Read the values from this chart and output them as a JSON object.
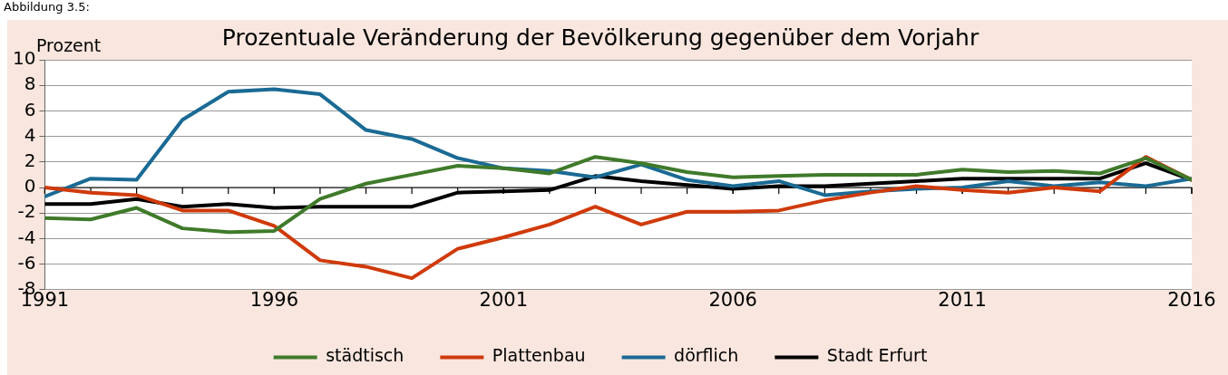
{
  "chart_data": {
    "type": "line",
    "title": "Prozentuale Veränderung der Bevölkerung gegenüber dem Vorjahr",
    "ylabel": "Prozent",
    "annotations": [
      "Abbildung 3.5:"
    ],
    "x": [
      1991,
      1992,
      1993,
      1994,
      1995,
      1996,
      1997,
      1998,
      1999,
      2000,
      2001,
      2002,
      2003,
      2004,
      2005,
      2006,
      2007,
      2008,
      2009,
      2010,
      2011,
      2012,
      2013,
      2014,
      2015,
      2016
    ],
    "series": [
      {
        "name": "städtisch",
        "color": "#3f7a2a",
        "values": [
          -2.4,
          -2.5,
          -1.6,
          -3.2,
          -3.5,
          -3.4,
          -0.9,
          0.3,
          1.0,
          1.7,
          1.5,
          1.1,
          2.4,
          1.9,
          1.2,
          0.8,
          0.9,
          1.0,
          1.0,
          1.0,
          1.4,
          1.2,
          1.3,
          1.1,
          2.3,
          0.6
        ]
      },
      {
        "name": "Plattenbau",
        "color": "#d03a0a",
        "values": [
          0.0,
          -0.4,
          -0.6,
          -1.8,
          -1.8,
          -3.0,
          -5.7,
          -6.2,
          -7.1,
          -4.8,
          -3.9,
          -2.9,
          -1.5,
          -2.9,
          -1.9,
          -1.9,
          -1.8,
          -1.0,
          -0.4,
          0.1,
          -0.2,
          -0.4,
          0.0,
          -0.3,
          2.4,
          0.6
        ]
      },
      {
        "name": "dörflich",
        "color": "#1a6a94",
        "values": [
          -0.7,
          0.7,
          0.6,
          5.3,
          7.5,
          7.7,
          7.3,
          4.5,
          3.8,
          2.3,
          1.5,
          1.3,
          0.8,
          1.8,
          0.6,
          0.1,
          0.5,
          -0.6,
          -0.3,
          -0.1,
          0.0,
          0.5,
          0.1,
          0.4,
          0.1,
          0.7
        ]
      },
      {
        "name": "Stadt Erfurt",
        "color": "#000000",
        "values": [
          -1.3,
          -1.3,
          -0.9,
          -1.5,
          -1.3,
          -1.6,
          -1.5,
          -1.5,
          -1.5,
          -0.4,
          -0.3,
          -0.2,
          0.9,
          0.5,
          0.2,
          -0.1,
          0.1,
          0.1,
          0.3,
          0.5,
          0.7,
          0.7,
          0.7,
          0.7,
          1.9,
          0.6
        ]
      }
    ],
    "xlim": [
      1991,
      2016
    ],
    "xticks": [
      1991,
      1996,
      2001,
      2006,
      2011,
      2016
    ],
    "ylim": [
      -8,
      10
    ],
    "yticks": [
      -8,
      -6,
      -4,
      -2,
      0,
      2,
      4,
      6,
      8,
      10
    ],
    "ref_lines": [
      {
        "axis": "y",
        "value": 0,
        "color": "#000000"
      }
    ],
    "grid": "y",
    "legend": "bottom",
    "marker": "none",
    "line_style": "solid"
  }
}
